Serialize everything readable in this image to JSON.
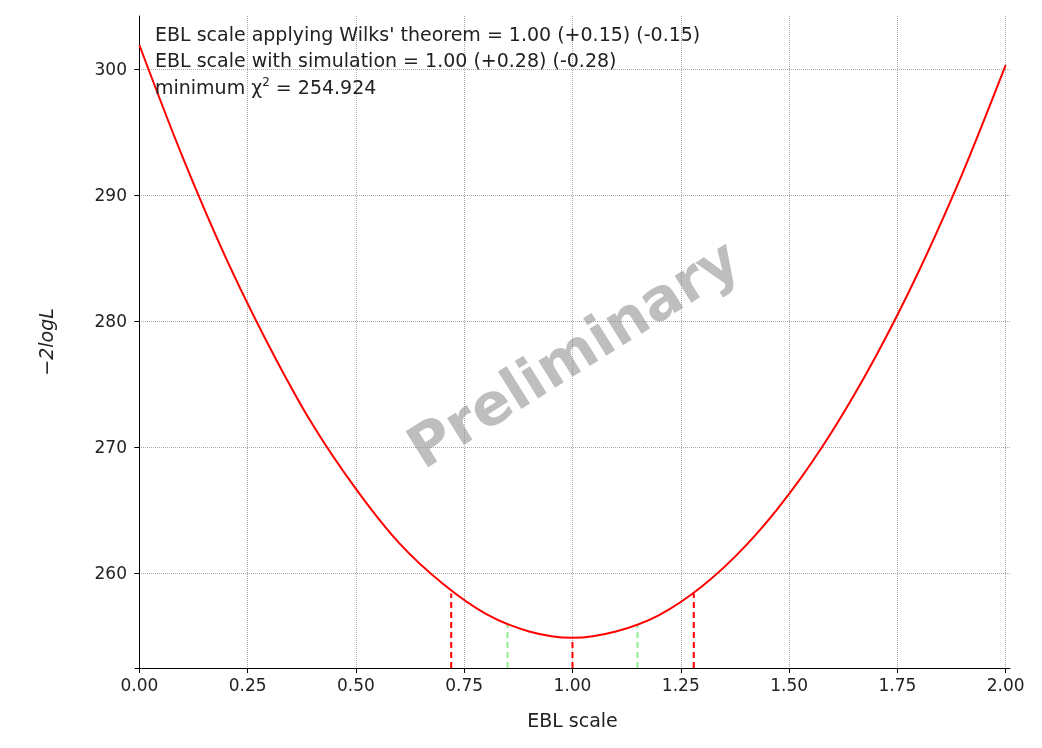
{
  "chart_data": {
    "type": "line",
    "xlabel": "EBL scale",
    "ylabel": "−2logL",
    "xlim": [
      -0.01,
      2.01
    ],
    "ylim": [
      252.5,
      304.2
    ],
    "xticks": [
      {
        "value": 0,
        "label": "0.00"
      },
      {
        "value": 0.25,
        "label": "0.25"
      },
      {
        "value": 0.5,
        "label": "0.50"
      },
      {
        "value": 0.75,
        "label": "0.75"
      },
      {
        "value": 1,
        "label": "1.00"
      },
      {
        "value": 1.25,
        "label": "1.25"
      },
      {
        "value": 1.5,
        "label": "1.50"
      },
      {
        "value": 1.75,
        "label": "1.75"
      },
      {
        "value": 2,
        "label": "2.00"
      }
    ],
    "yticks": [
      260,
      270,
      280,
      290,
      300
    ],
    "grid": true,
    "marker": "none",
    "annotations": [
      "EBL scale applying Wilks' theorem = 1.00 (+0.15) (-0.15)",
      "EBL scale with simulation = 1.00 (+0.28) (-0.28)",
      "minimum χ$^{2}$ = 254.924",
      "Preliminary"
    ],
    "series": [
      {
        "color": "#ff0000",
        "line_style": "solid",
        "x": [
          0,
          0.1,
          0.2,
          0.3,
          0.4,
          0.5,
          0.6,
          0.7,
          0.8,
          0.9,
          1.0,
          1.1,
          1.2,
          1.3,
          1.4,
          1.5,
          1.6,
          1.7,
          1.8,
          1.9,
          2.0
        ],
        "values": [
          301.9,
          293.0,
          285.0,
          278.0,
          271.8,
          266.7,
          262.4,
          259.2,
          256.8,
          255.4,
          254.9,
          255.4,
          256.7,
          259.0,
          262.2,
          266.3,
          271.3,
          277.2,
          284.0,
          291.7,
          300.3
        ]
      },
      {
        "color": "#ff0000",
        "line_style": "dashed",
        "x": [
          0.72,
          0.72
        ],
        "values": [
          252.5,
          258.4
        ]
      },
      {
        "color": "#90ee90",
        "line_style": "dashed",
        "x": [
          0.85,
          0.85
        ],
        "values": [
          252.5,
          255.9
        ]
      },
      {
        "color": "#ff0000",
        "line_style": "dashed",
        "x": [
          1.0,
          1.0
        ],
        "values": [
          252.5,
          254.9
        ]
      },
      {
        "color": "#90ee90",
        "line_style": "dashed",
        "x": [
          1.15,
          1.15
        ],
        "values": [
          252.5,
          255.9
        ]
      },
      {
        "color": "#ff0000",
        "line_style": "dashed",
        "x": [
          1.28,
          1.28
        ],
        "values": [
          252.5,
          258.4
        ]
      }
    ]
  }
}
